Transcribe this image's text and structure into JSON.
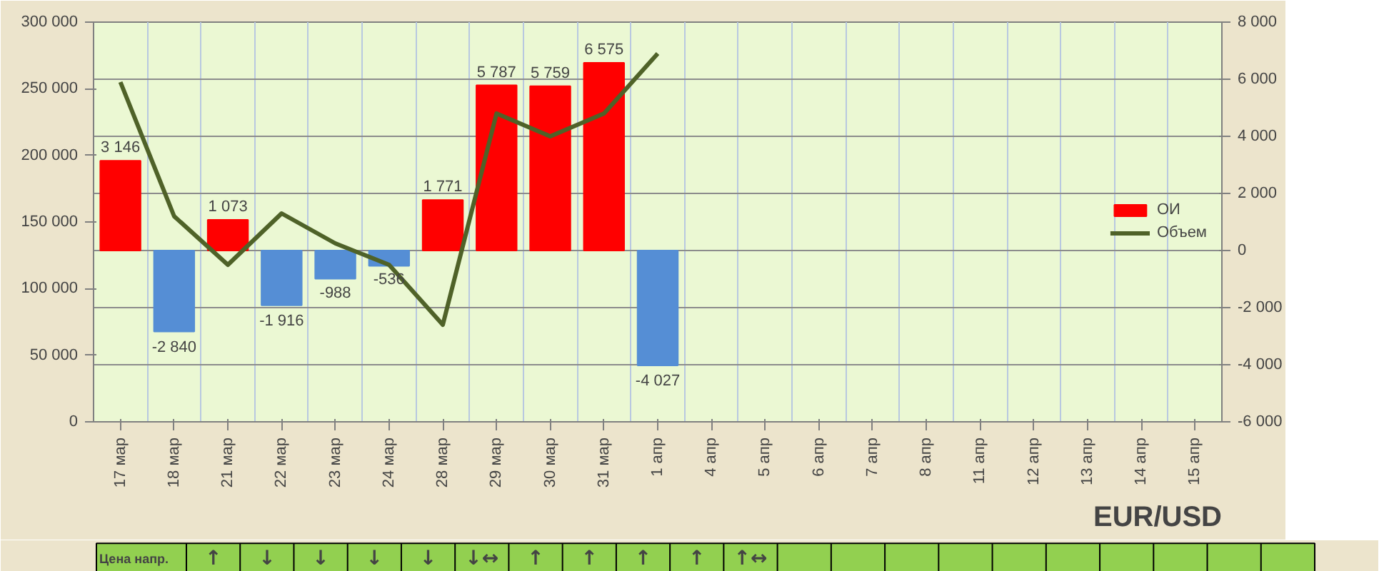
{
  "chart_data": {
    "type": "bar",
    "categories": [
      "17 мар",
      "18 мар",
      "21 мар",
      "22 мар",
      "23 мар",
      "24 мар",
      "28 мар",
      "29 мар",
      "30 мар",
      "31 мар",
      "1 апр",
      "4 апр",
      "5 апр",
      "6 апр",
      "7 апр",
      "8 апр",
      "11 апр",
      "12 апр",
      "13 апр",
      "14 апр",
      "15 апр"
    ],
    "series": [
      {
        "name": "ОИ",
        "axis": "y2",
        "colors": [
          "#ff0000",
          "#558ed5",
          "#ff0000",
          "#558ed5",
          "#558ed5",
          "#558ed5",
          "#ff0000",
          "#ff0000",
          "#ff0000",
          "#ff0000",
          "#558ed5",
          null,
          null,
          null,
          null,
          null,
          null,
          null,
          null,
          null,
          null
        ],
        "values": [
          3146,
          -2840,
          1073,
          -1916,
          -988,
          -536,
          1771,
          5787,
          5759,
          6575,
          -4027,
          null,
          null,
          null,
          null,
          null,
          null,
          null,
          null,
          null,
          null
        ],
        "value_labels": [
          "3 146",
          "-2 840",
          "1 073",
          "-1 916",
          "-988",
          "-536",
          "1 771",
          "5 787",
          "5 759",
          "6 575",
          "-4 027",
          null,
          null,
          null,
          null,
          null,
          null,
          null,
          null,
          null,
          null
        ]
      },
      {
        "name": "Объем",
        "type": "line",
        "axis": "y2",
        "color": "#4f6228",
        "values": [
          5900,
          1200,
          -500,
          1300,
          250,
          -500,
          -2600,
          4800,
          4000,
          4800,
          6900,
          null,
          null,
          null,
          null,
          null,
          null,
          null,
          null,
          null,
          null
        ]
      }
    ],
    "ylim": [
      0,
      300000
    ],
    "yticks": [
      0,
      {
        "value": 50000,
        "label": "50 000"
      },
      {
        "value": 100000,
        "label": "100 000"
      },
      {
        "value": 150000,
        "label": "150 000"
      },
      {
        "value": 200000,
        "label": "200 000"
      },
      {
        "value": 250000,
        "label": "250 000"
      },
      {
        "value": 300000,
        "label": "300 000"
      }
    ],
    "y2lim": [
      -6000,
      8000
    ],
    "y2ticks": [
      {
        "value": -6000,
        "label": "-6 000"
      },
      {
        "value": -4000,
        "label": "-4 000"
      },
      {
        "value": -2000,
        "label": "-2 000"
      },
      0,
      {
        "value": 2000,
        "label": "2 000"
      },
      {
        "value": 4000,
        "label": "4 000"
      },
      {
        "value": 6000,
        "label": "6 000"
      },
      {
        "value": 8000,
        "label": "8 000"
      }
    ],
    "grid": true,
    "legend": "right",
    "annotations": [
      "EUR/USD",
      "Цена напр.",
      "↑",
      "↓",
      "↓",
      "↓",
      "↓",
      "↓↔",
      "↑",
      "↑",
      "↑",
      "↑",
      "↑↔"
    ]
  }
}
